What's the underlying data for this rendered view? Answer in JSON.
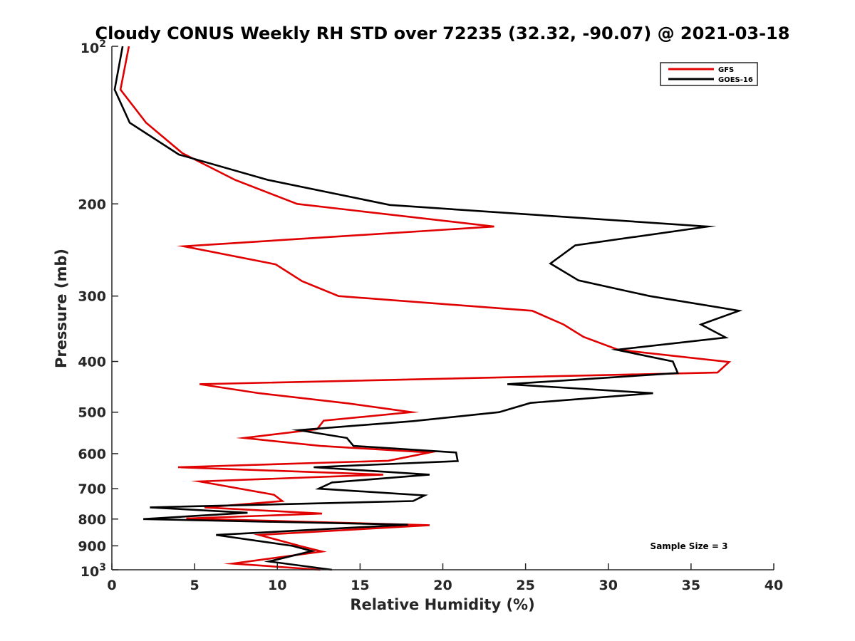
{
  "chart_data": {
    "type": "line",
    "title": "Cloudy CONUS Weekly RH STD over 72235 (32.32, -90.07) @ 2021-03-18",
    "xlabel": "Relative Humidity (%)",
    "ylabel": "Pressure (mb)",
    "xlim": [
      0,
      40
    ],
    "ylim": [
      100,
      1000
    ],
    "yscale": "log",
    "yreversed": true,
    "xticks": [
      0,
      5,
      10,
      15,
      20,
      25,
      30,
      35,
      40
    ],
    "xtick_labels": [
      "0",
      "5",
      "10",
      "15",
      "20",
      "25",
      "30",
      "35",
      "40"
    ],
    "yticks": [
      100,
      200,
      300,
      400,
      500,
      600,
      700,
      800,
      900,
      1000
    ],
    "ytick_labels": [
      "10^2",
      "200",
      "300",
      "400",
      "500",
      "600",
      "700",
      "800",
      "900",
      "10^3"
    ],
    "grid": false,
    "legend": {
      "position": "top-right",
      "entries": [
        "GFS",
        "GOES-16"
      ]
    },
    "annotation": "Sample Size = 3",
    "series": [
      {
        "name": "GFS",
        "color": "#e00000",
        "pressure": [
          100,
          121,
          140,
          160,
          180,
          200,
          221,
          241,
          261,
          281,
          300,
          320,
          340,
          359,
          380,
          401,
          420,
          442,
          460,
          481,
          500,
          519,
          539,
          560,
          580,
          597,
          619,
          637,
          658,
          678,
          719,
          739,
          760,
          781,
          798,
          822,
          858,
          903,
          923,
          973,
          1000
        ],
        "rh": [
          1.03,
          0.52,
          2.07,
          4.26,
          7.45,
          11.2,
          23.1,
          4.35,
          9.9,
          11.5,
          13.7,
          25.4,
          27.3,
          28.5,
          30.6,
          37.3,
          36.6,
          5.3,
          8.9,
          14.3,
          18.1,
          12.8,
          12.4,
          8.0,
          12.6,
          19.2,
          16.7,
          4.0,
          16.4,
          5.3,
          9.8,
          10.3,
          5.6,
          12.7,
          4.5,
          19.2,
          8.9,
          11.5,
          12.7,
          7.3,
          12.6
        ]
      },
      {
        "name": "GOES-16",
        "color": "#000000",
        "pressure": [
          100,
          121,
          140,
          161,
          180,
          201,
          221,
          240,
          260,
          280,
          300,
          320,
          340,
          360,
          380,
          400,
          421,
          442,
          460,
          480,
          500,
          520,
          541,
          560,
          580,
          597,
          620,
          637,
          658,
          681,
          700,
          721,
          739,
          760,
          778,
          800,
          820,
          858,
          900,
          921,
          964,
          1000
        ],
        "rh": [
          0.65,
          0.17,
          1.08,
          4.05,
          9.43,
          16.8,
          36.0,
          28.0,
          26.5,
          28.2,
          32.5,
          37.9,
          35.6,
          37.1,
          30.5,
          33.9,
          34.2,
          23.9,
          32.7,
          25.3,
          23.4,
          18.2,
          11.3,
          14.2,
          14.6,
          20.8,
          20.9,
          12.2,
          19.2,
          13.3,
          12.5,
          18.9,
          18.2,
          2.3,
          8.2,
          1.9,
          17.9,
          6.3,
          10.9,
          12.1,
          9.5,
          13.3
        ]
      }
    ]
  }
}
